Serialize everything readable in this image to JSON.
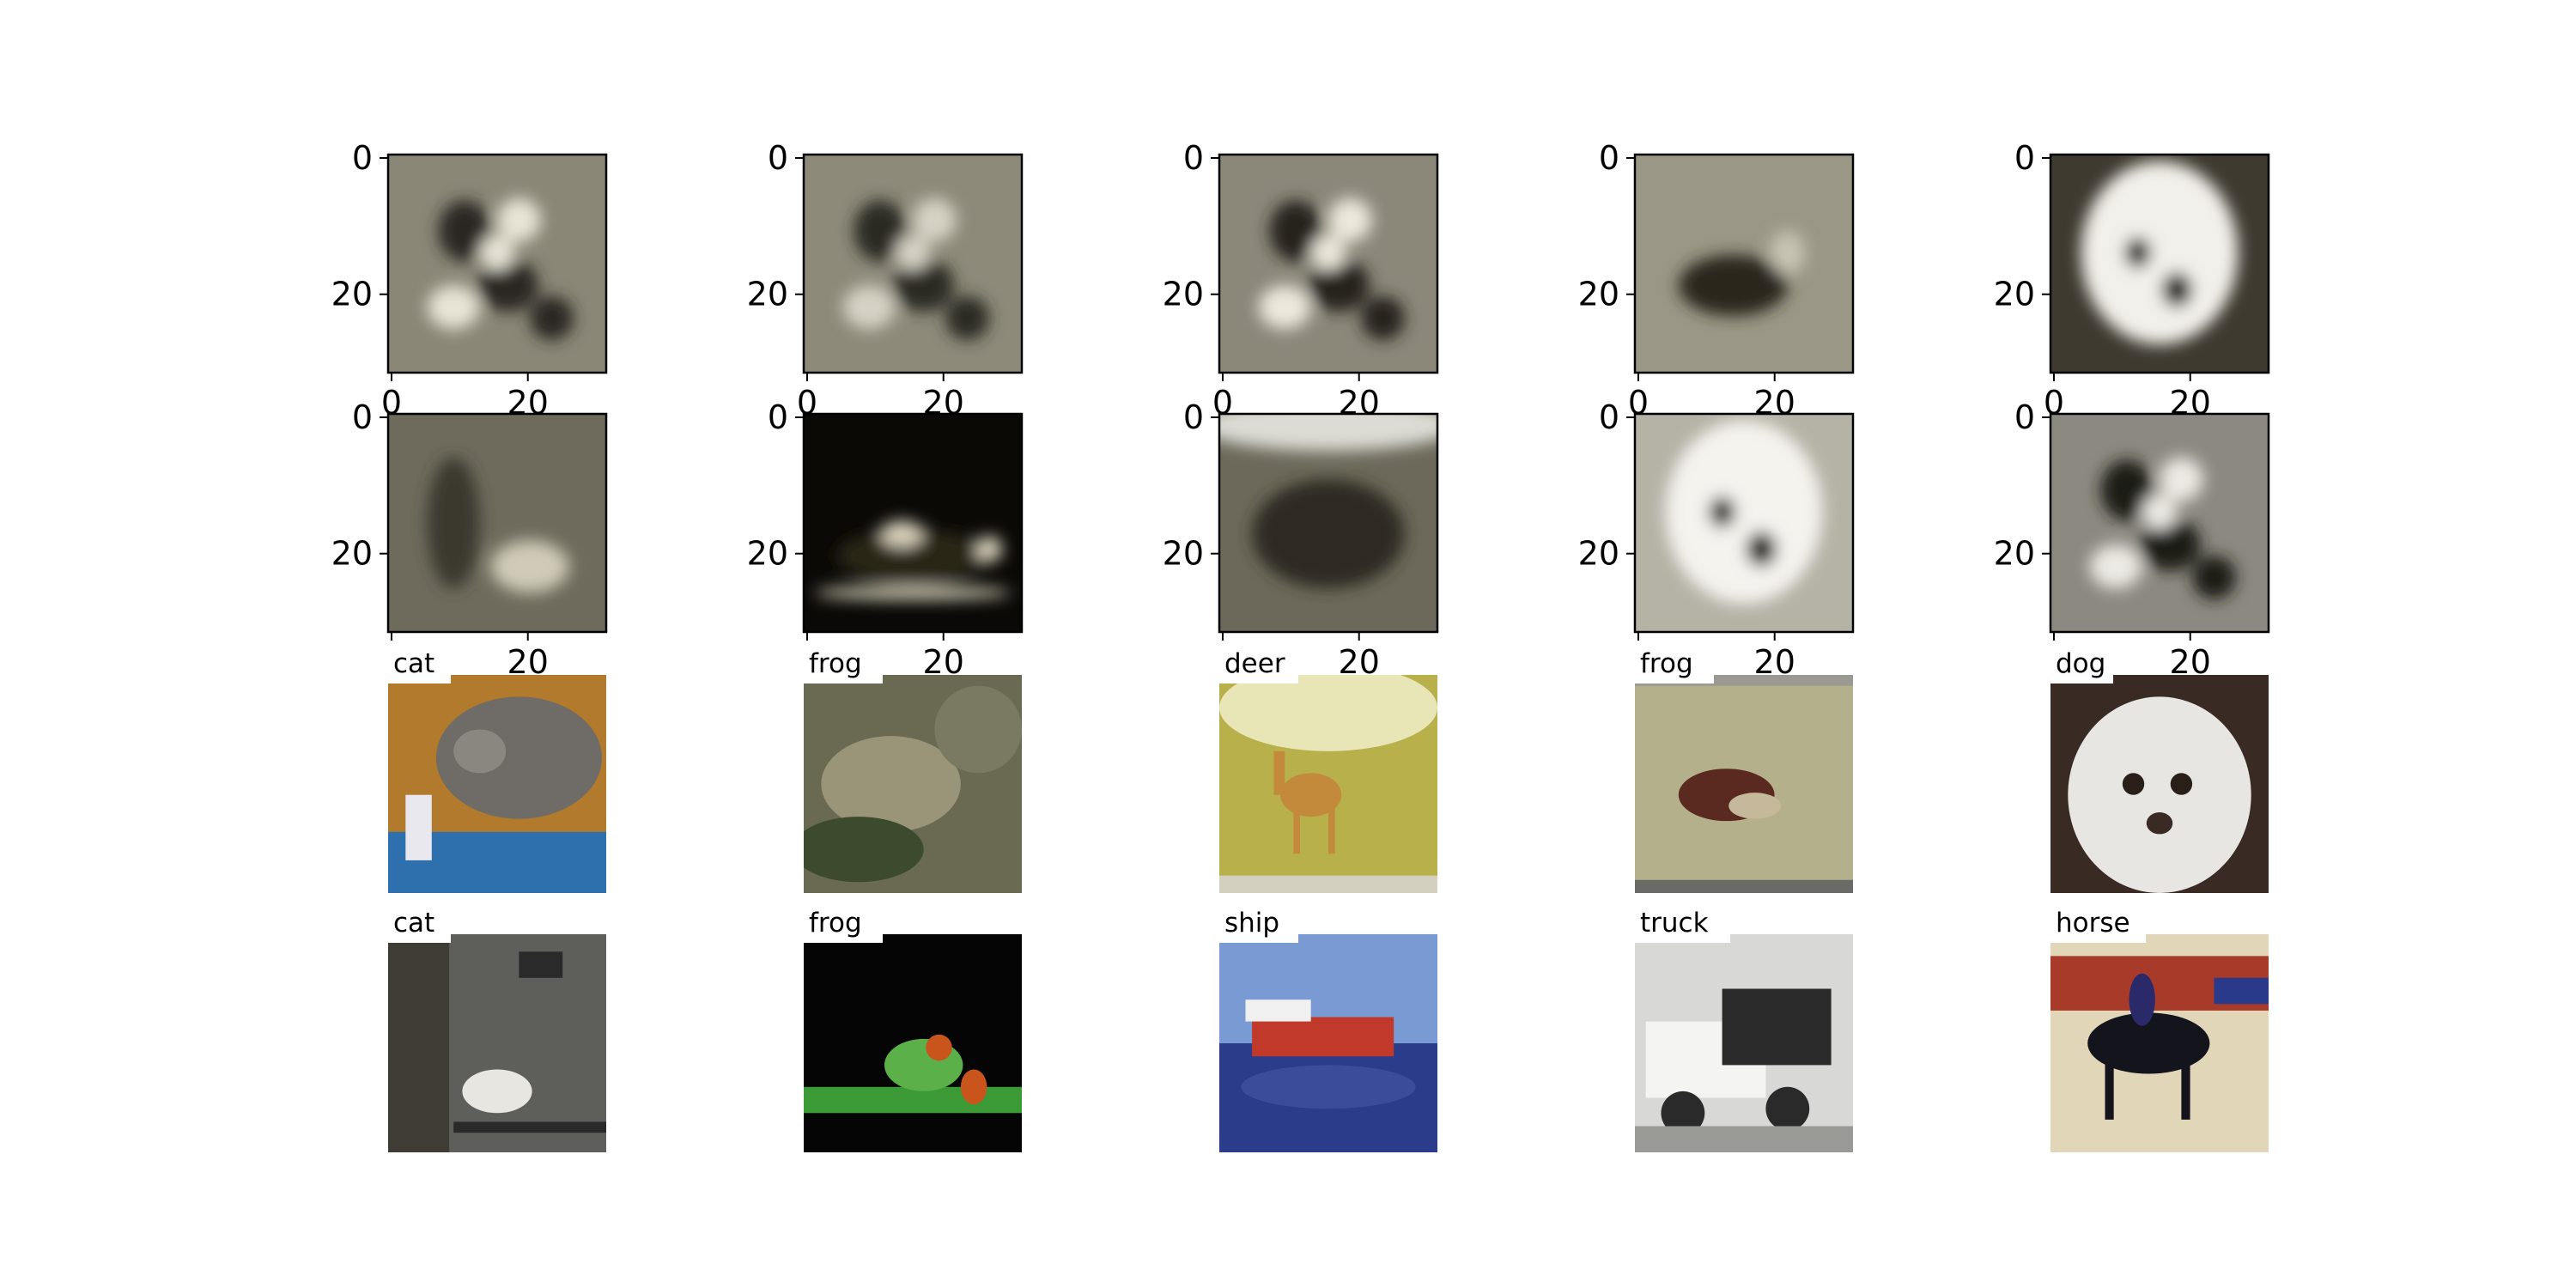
{
  "chart_data": {
    "type": "image_grid",
    "rows": 4,
    "cols": 5,
    "image_size": 32,
    "reconstructions": {
      "description_rows": [
        0,
        1
      ],
      "x_ticks": [
        "0",
        "20"
      ],
      "y_ticks": [
        "0",
        "20"
      ],
      "tick_values": [
        0,
        20
      ],
      "panels": [
        {
          "kind": "blur-blobs",
          "bg": "#8a8777",
          "fg": "#2a2820",
          "hi": "#e8e4d6"
        },
        {
          "kind": "blur-blobs",
          "bg": "#8d8a7a",
          "fg": "#2c2a22",
          "hi": "#d6d2c4"
        },
        {
          "kind": "blur-blobs",
          "bg": "#8b887a",
          "fg": "#26241e",
          "hi": "#ece8dc"
        },
        {
          "kind": "blur-blob",
          "bg": "#9a9786",
          "fg": "#2a281f",
          "hi": "#c8c4b4"
        },
        {
          "kind": "blur-face",
          "bg": "#3e3a30",
          "fg": "#1e1c16",
          "hi": "#f2f0ea"
        },
        {
          "kind": "blur-dark",
          "bg": "#6e6b5c",
          "fg": "#3a372d",
          "hi": "#cfcbb8"
        },
        {
          "kind": "blur-night",
          "bg": "#0a0906",
          "fg": "#2a2618",
          "hi": "#d8d2bc"
        },
        {
          "kind": "blur-band",
          "bg": "#6c695a",
          "fg": "#2e2c24",
          "hi": "#dcdcd4"
        },
        {
          "kind": "blur-face",
          "bg": "#b5b3a6",
          "fg": "#1c1a14",
          "hi": "#f4f3ee"
        },
        {
          "kind": "blur-blobs",
          "bg": "#8c8a80",
          "fg": "#1e1c16",
          "hi": "#eceae4"
        }
      ]
    },
    "samples": {
      "row3_labels": [
        "cat",
        "frog",
        "deer",
        "frog",
        "dog"
      ],
      "row4_labels": [
        "cat",
        "frog",
        "ship",
        "truck",
        "horse"
      ],
      "row3_panels": [
        {
          "kind": "cat",
          "c1": "#b17a2c",
          "c2": "#6f6b66",
          "c3": "#2e6fad"
        },
        {
          "kind": "frog-ground",
          "c1": "#6a6a52",
          "c2": "#9a9478",
          "c3": "#3c4a2e"
        },
        {
          "kind": "deer",
          "c1": "#b8b04a",
          "c2": "#c28a3a",
          "c3": "#e8e6b6"
        },
        {
          "kind": "frog-flat",
          "c1": "#b5b08c",
          "c2": "#5a2a20",
          "c3": "#8a8468"
        },
        {
          "kind": "dog",
          "c1": "#3a2a24",
          "c2": "#e8e6e2",
          "c3": "#c9c4bc"
        }
      ],
      "row4_panels": [
        {
          "kind": "cat-gray",
          "c1": "#5e5e5a",
          "c2": "#8a8a86",
          "c3": "#e8e6e0"
        },
        {
          "kind": "frog-green",
          "c1": "#050505",
          "c2": "#3c9a36",
          "c3": "#c9541c"
        },
        {
          "kind": "ship",
          "c1": "#7a9ad4",
          "c2": "#2a3c8a",
          "c3": "#c0392b"
        },
        {
          "kind": "truck",
          "c1": "#d8d8d6",
          "c2": "#f4f4f2",
          "c3": "#2a2a2a"
        },
        {
          "kind": "horse",
          "c1": "#e2d6b8",
          "c2": "#14141c",
          "c3": "#a83a2a"
        }
      ]
    }
  }
}
